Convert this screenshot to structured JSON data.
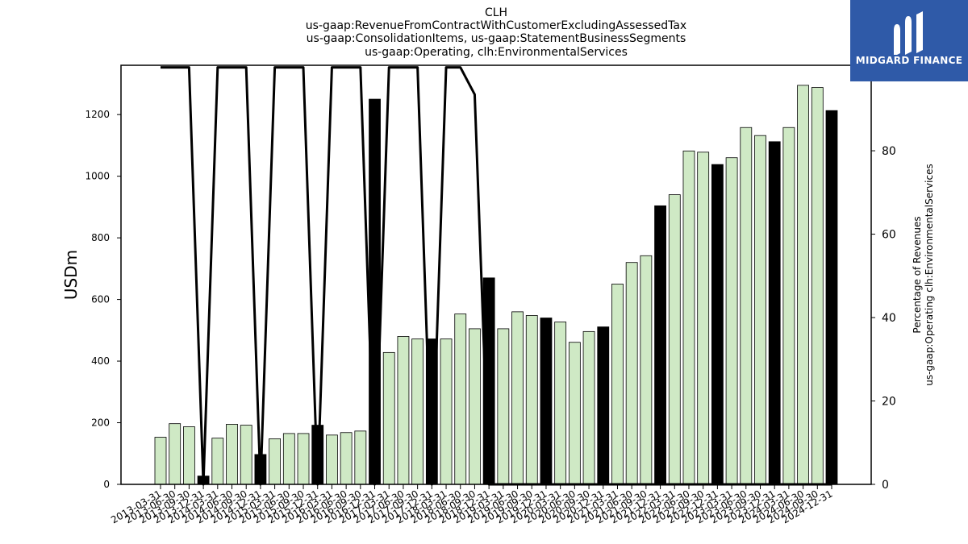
{
  "chart_data": {
    "type": "bar",
    "title_lines": [
      "CLH",
      "us-gaap:RevenueFromContractWithCustomerExcludingAssessedTax",
      "us-gaap:ConsolidationItems, us-gaap:StatementBusinessSegments",
      "us-gaap:Operating, clh:EnvironmentalServices"
    ],
    "ylabel": "USDm",
    "y2label_lines": [
      "Percentage of Revenues",
      "us-gaap:Operating clh:EnvironmentalServices"
    ],
    "ylim": [
      0,
      1360
    ],
    "y2lim": [
      0,
      100.5
    ],
    "yticks": [
      0,
      200,
      400,
      600,
      800,
      1000,
      1200
    ],
    "y2ticks": [
      0,
      20,
      40,
      60,
      80,
      100
    ],
    "grid": false,
    "colors": {
      "quarter_bar": "#cfe9c5",
      "annual_bar": "#000000",
      "bar_edge": "#000000",
      "line": "#000000"
    },
    "categories": [
      "2013-03-31",
      "2013-06-30",
      "2013-09-30",
      "2013-12-31",
      "2014-03-31",
      "2014-06-30",
      "2014-09-30",
      "2014-12-31",
      "2015-03-31",
      "2015-06-30",
      "2015-09-30",
      "2015-12-31",
      "2016-03-31",
      "2016-06-30",
      "2016-09-30",
      "2016-12-31",
      "2017-03-31",
      "2017-06-30",
      "2017-09-30",
      "2017-12-31",
      "2018-03-31",
      "2018-06-30",
      "2018-09-30",
      "2018-12-31",
      "2019-03-31",
      "2019-06-30",
      "2019-09-30",
      "2019-12-31",
      "2020-03-31",
      "2020-06-30",
      "2020-09-30",
      "2020-12-31",
      "2021-03-31",
      "2021-06-30",
      "2021-09-30",
      "2021-12-31",
      "2022-03-31",
      "2022-06-30",
      "2022-09-30",
      "2022-12-31",
      "2023-03-31",
      "2023-06-30",
      "2023-09-30",
      "2023-12-31",
      "2024-03-31",
      "2024-06-30",
      "2024-09-30",
      "2024-12-31"
    ],
    "series": [
      {
        "values": [
          153,
          197,
          187,
          27,
          150,
          195,
          192,
          97,
          148,
          165,
          165,
          192,
          160,
          168,
          173,
          1250,
          428,
          480,
          472,
          472,
          472,
          553,
          505,
          670,
          505,
          560,
          548,
          540,
          527,
          461,
          496,
          511,
          650,
          720,
          742,
          904,
          940,
          1082,
          1078,
          1038,
          1060,
          1158,
          1132,
          1112,
          1158,
          1295,
          1288,
          1213
        ],
        "annual": [
          false,
          false,
          false,
          true,
          false,
          false,
          false,
          true,
          false,
          false,
          false,
          true,
          false,
          false,
          false,
          true,
          false,
          false,
          false,
          true,
          false,
          false,
          false,
          true,
          false,
          false,
          false,
          true,
          false,
          false,
          false,
          true,
          false,
          false,
          false,
          true,
          false,
          false,
          false,
          true,
          false,
          false,
          false,
          true,
          false,
          false,
          false,
          true
        ]
      },
      {
        "axis": "right",
        "type": "line",
        "values": [
          100,
          100,
          100,
          0,
          100,
          100,
          100,
          0,
          100,
          100,
          100,
          0,
          100,
          100,
          100,
          0,
          100,
          100,
          100,
          0,
          100,
          100,
          93.5,
          0,
          0,
          0,
          0,
          0,
          0,
          0,
          0,
          0,
          0,
          0,
          0,
          0,
          0,
          0,
          0,
          0,
          0,
          0,
          0,
          0,
          0,
          0,
          0,
          0
        ]
      }
    ]
  },
  "logo": {
    "text": "MIDGARD FINANCE"
  }
}
